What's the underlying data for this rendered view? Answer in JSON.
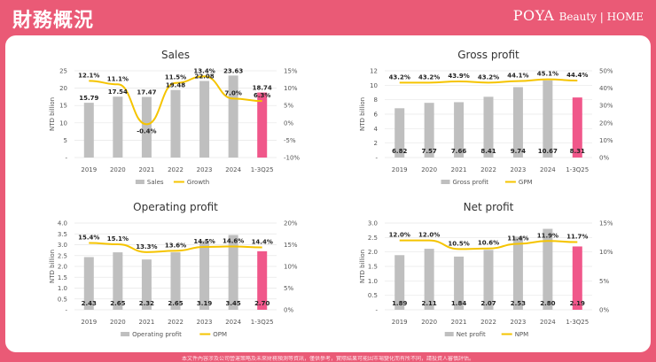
{
  "header": {
    "title": "財務概況",
    "brand_main": "POYA",
    "brand_sub": "Beauty | HOME"
  },
  "footer_text": "本文件內容涉及公司營運策略及未來財務預測等資訊，僅供參考，實際結果可能因市場變化而有所不同，請投資人審慎評估。",
  "colors": {
    "background": "#ea5a76",
    "bar": "#bfbfbf",
    "bar_highlight": "#f0578a",
    "line": "#f5c400"
  },
  "chart_data": [
    {
      "id": "sales",
      "type": "bar",
      "title": "Sales",
      "ylabel": "NTD billion",
      "categories": [
        "2019",
        "2020",
        "2021",
        "2022",
        "2023",
        "2024",
        "1-3Q25"
      ],
      "y_ticks": [
        "-",
        "5",
        "10",
        "15",
        "20",
        "25"
      ],
      "y2_ticks": [
        "-10%",
        "-5%",
        "0%",
        "5%",
        "10%",
        "15%"
      ],
      "ylim": [
        0,
        25
      ],
      "y2lim": [
        -10,
        15
      ],
      "series": [
        {
          "name": "Sales",
          "type": "bar",
          "values": [
            15.79,
            17.54,
            17.47,
            19.48,
            22.08,
            23.63,
            18.74
          ],
          "labels": [
            "15.79",
            "17.54",
            "17.47",
            "19.48",
            "22.08",
            "23.63",
            "18.74"
          ]
        },
        {
          "name": "Growth",
          "type": "line",
          "axis": "right",
          "values": [
            12.1,
            11.1,
            -0.4,
            11.5,
            13.4,
            7.0,
            6.3
          ],
          "labels": [
            "12.1%",
            "11.1%",
            "-0.4%",
            "11.5%",
            "13.4%",
            "7.0%",
            "6.3%"
          ]
        }
      ],
      "bar_label_position": "top",
      "legend": [
        "Sales",
        "Growth"
      ]
    },
    {
      "id": "gross_profit",
      "type": "bar",
      "title": "Gross profit",
      "ylabel": "NTD billion",
      "categories": [
        "2019",
        "2020",
        "2021",
        "2022",
        "2023",
        "2024",
        "1-3Q25"
      ],
      "y_ticks": [
        "-",
        "2",
        "4",
        "6",
        "8",
        "10",
        "12"
      ],
      "y2_ticks": [
        "0%",
        "10%",
        "20%",
        "30%",
        "40%",
        "50%"
      ],
      "ylim": [
        0,
        12
      ],
      "y2lim": [
        0,
        50
      ],
      "series": [
        {
          "name": "Gross profit",
          "type": "bar",
          "values": [
            6.82,
            7.57,
            7.66,
            8.41,
            9.74,
            10.67,
            8.31
          ],
          "labels": [
            "6.82",
            "7.57",
            "7.66",
            "8.41",
            "9.74",
            "10.67",
            "8.31"
          ]
        },
        {
          "name": "GPM",
          "type": "line",
          "axis": "right",
          "values": [
            43.2,
            43.2,
            43.9,
            43.2,
            44.1,
            45.1,
            44.4
          ],
          "labels": [
            "43.2%",
            "43.2%",
            "43.9%",
            "43.2%",
            "44.1%",
            "45.1%",
            "44.4%"
          ]
        }
      ],
      "bar_label_position": "bottom",
      "legend": [
        "Gross profit",
        "GPM"
      ]
    },
    {
      "id": "operating_profit",
      "type": "bar",
      "title": "Operating profit",
      "ylabel": "NTD billion",
      "categories": [
        "2019",
        "2020",
        "2021",
        "2022",
        "2023",
        "2024",
        "1-3Q25"
      ],
      "y_ticks": [
        "-",
        "0.5",
        "1.0",
        "1.5",
        "2.0",
        "2.5",
        "3.0",
        "3.5",
        "4.0"
      ],
      "y2_ticks": [
        "0%",
        "5%",
        "10%",
        "15%",
        "20%"
      ],
      "ylim": [
        0,
        4
      ],
      "y2lim": [
        0,
        20
      ],
      "series": [
        {
          "name": "Operating profit",
          "type": "bar",
          "values": [
            2.43,
            2.65,
            2.32,
            2.65,
            3.19,
            3.45,
            2.7
          ],
          "labels": [
            "2.43",
            "2.65",
            "2.32",
            "2.65",
            "3.19",
            "3.45",
            "2.70"
          ]
        },
        {
          "name": "OPM",
          "type": "line",
          "axis": "right",
          "values": [
            15.4,
            15.1,
            13.3,
            13.6,
            14.5,
            14.6,
            14.4
          ],
          "labels": [
            "15.4%",
            "15.1%",
            "13.3%",
            "13.6%",
            "14.5%",
            "14.6%",
            "14.4%"
          ]
        }
      ],
      "bar_label_position": "bottom",
      "legend": [
        "Operating profit",
        "OPM"
      ]
    },
    {
      "id": "net_profit",
      "type": "bar",
      "title": "Net profit",
      "ylabel": "NTD billion",
      "categories": [
        "2019",
        "2020",
        "2021",
        "2022",
        "2023",
        "2024",
        "1-3Q25"
      ],
      "y_ticks": [
        "-",
        "0.5",
        "1.0",
        "1.5",
        "2.0",
        "2.5",
        "3.0"
      ],
      "y2_ticks": [
        "0%",
        "5%",
        "10%",
        "15%"
      ],
      "ylim": [
        0,
        3
      ],
      "y2lim": [
        0,
        15
      ],
      "series": [
        {
          "name": "Net profit",
          "type": "bar",
          "values": [
            1.89,
            2.11,
            1.84,
            2.07,
            2.53,
            2.8,
            2.19
          ],
          "labels": [
            "1.89",
            "2.11",
            "1.84",
            "2.07",
            "2.53",
            "2.80",
            "2.19"
          ]
        },
        {
          "name": "NPM",
          "type": "line",
          "axis": "right",
          "values": [
            12.0,
            12.0,
            10.5,
            10.6,
            11.4,
            11.9,
            11.7
          ],
          "labels": [
            "12.0%",
            "12.0%",
            "10.5%",
            "10.6%",
            "11.4%",
            "11.9%",
            "11.7%"
          ]
        }
      ],
      "bar_label_position": "bottom",
      "legend": [
        "Net profit",
        "NPM"
      ]
    }
  ]
}
